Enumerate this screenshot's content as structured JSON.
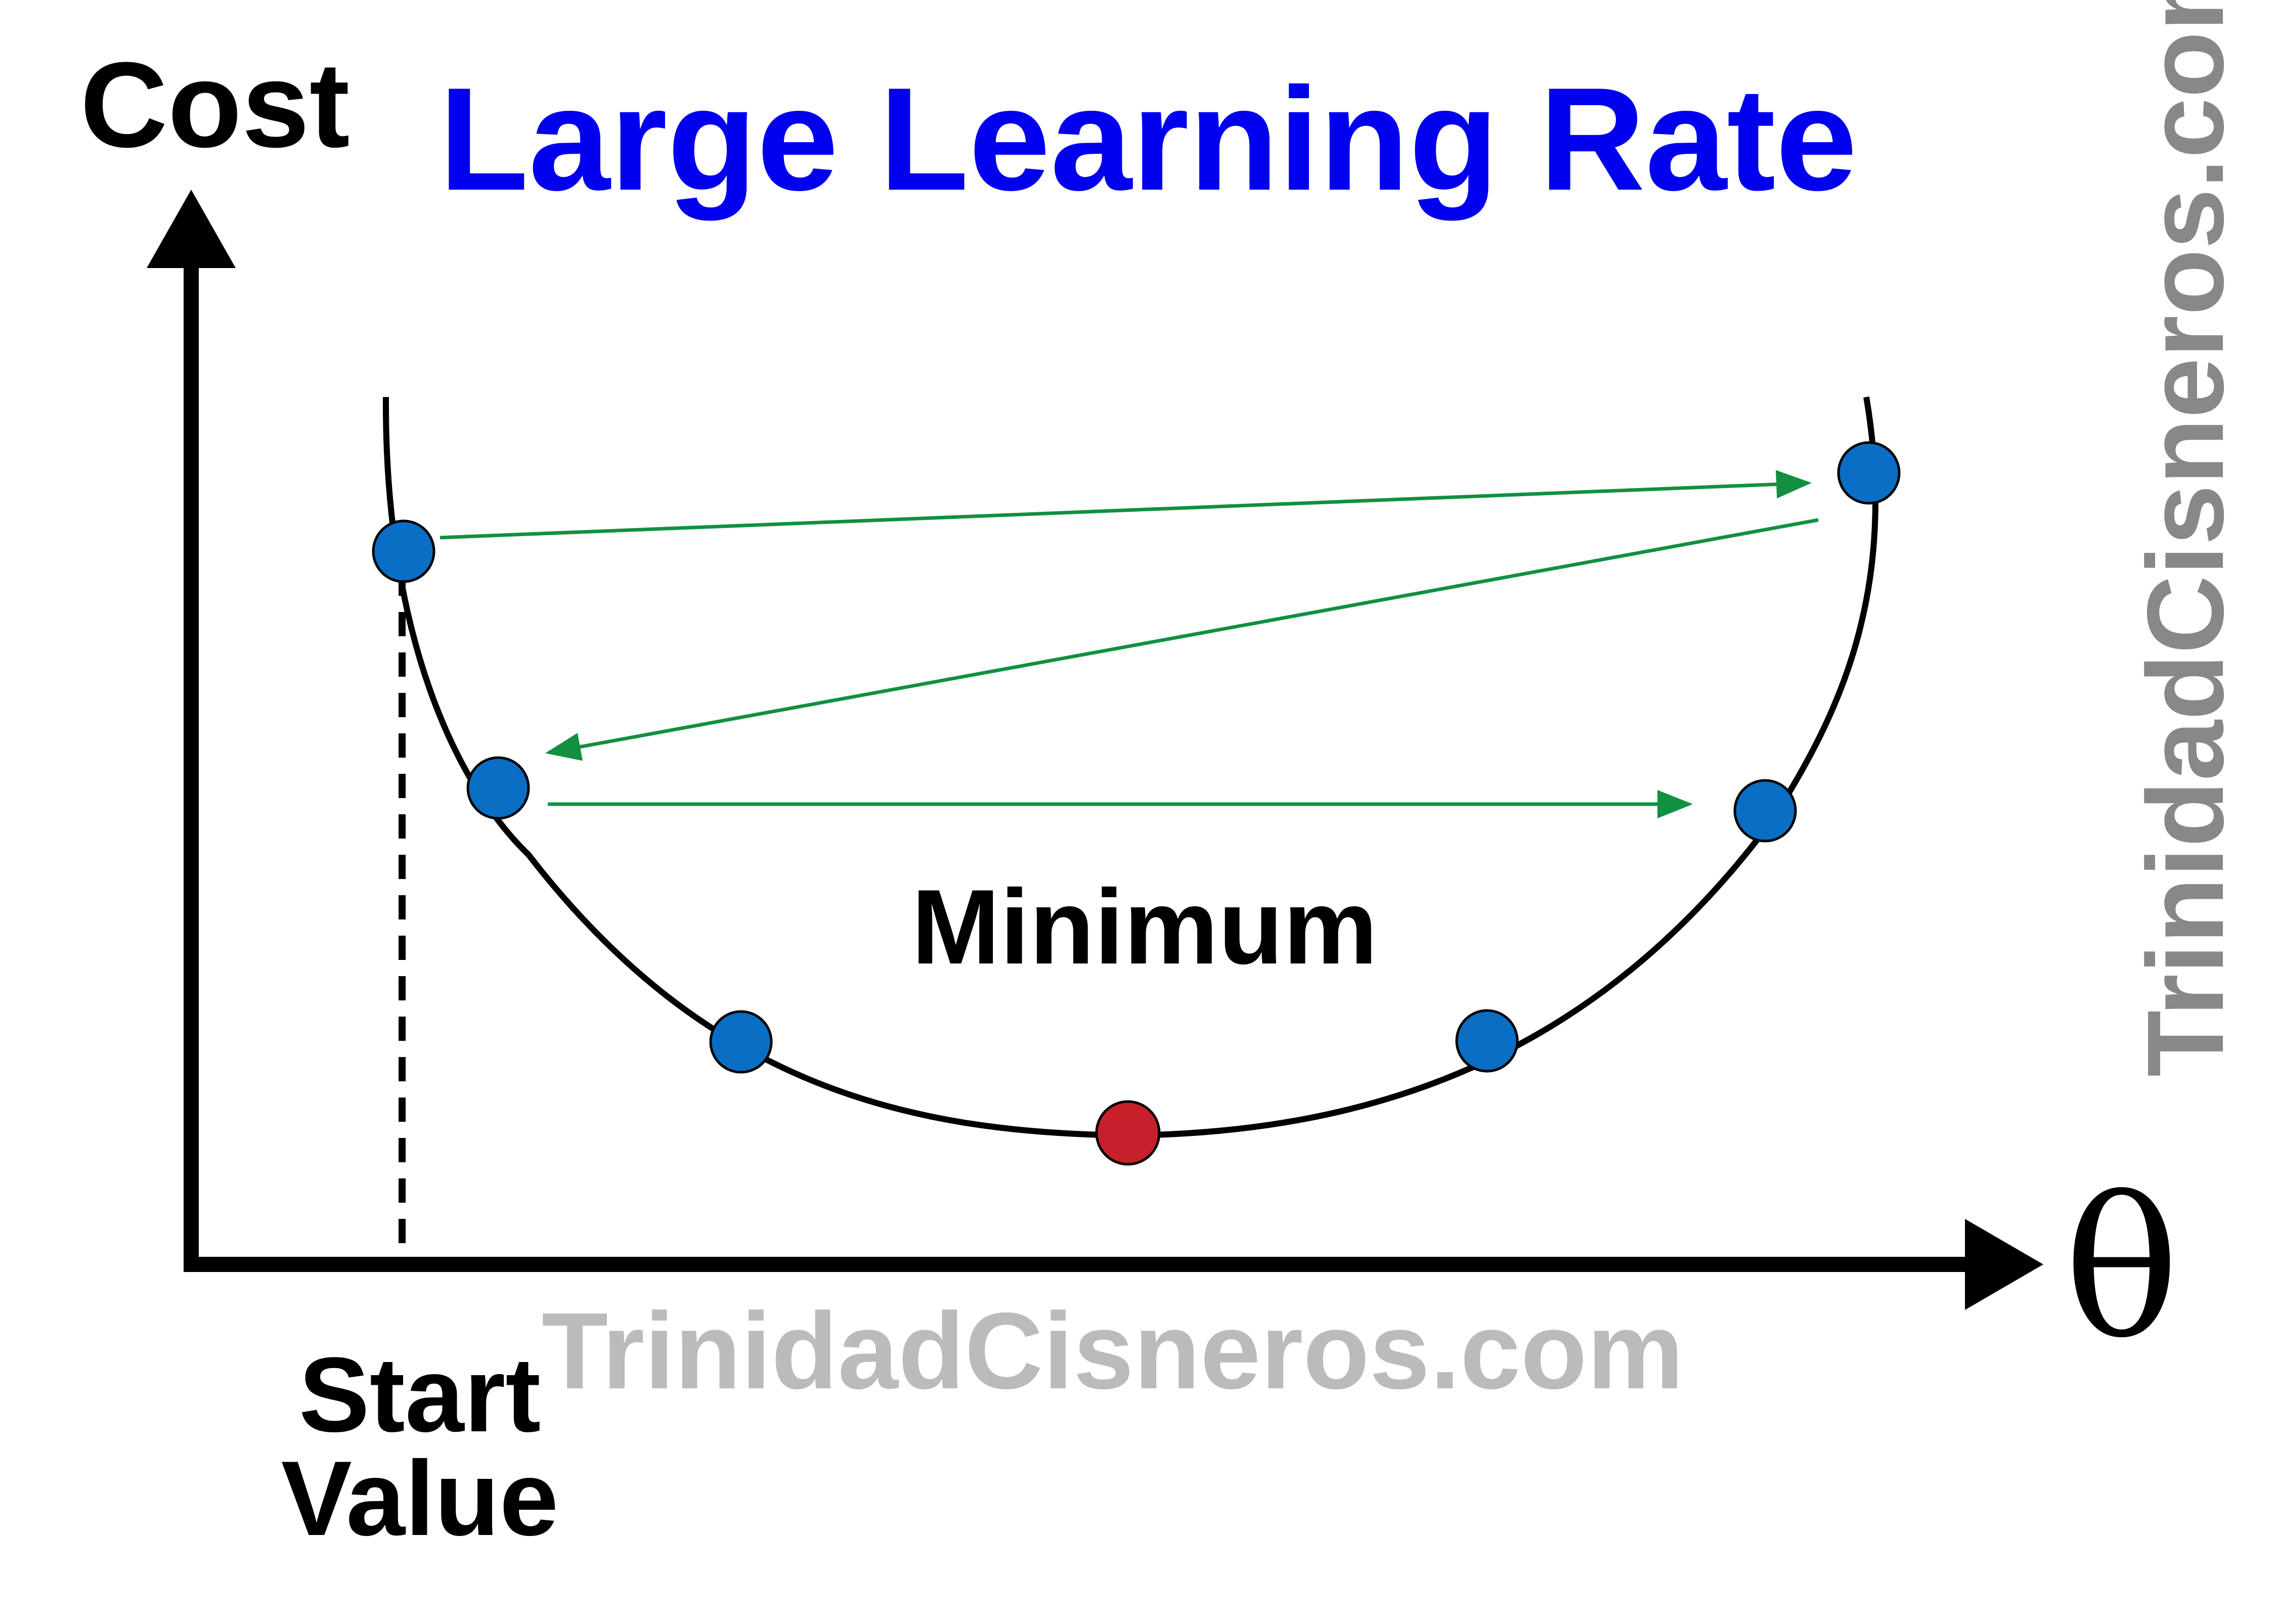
{
  "title": "Large Learning Rate",
  "y_axis_label": "Cost",
  "x_axis_label": "θ",
  "minimum_label": "Minimum",
  "start_label_line1": "Start",
  "start_label_line2": "Value",
  "watermark_bottom": "TrinidadCisneros.com",
  "watermark_side": "TrinidadCisneros.com",
  "colors": {
    "title": "#0000ee",
    "axis": "#000000",
    "curve": "#000000",
    "arrows": "#109040",
    "step_point": "#0a6ec4",
    "minimum_point": "#c8202a",
    "watermark_bottom": "#bbbbbb",
    "watermark_side": "#888888"
  }
}
